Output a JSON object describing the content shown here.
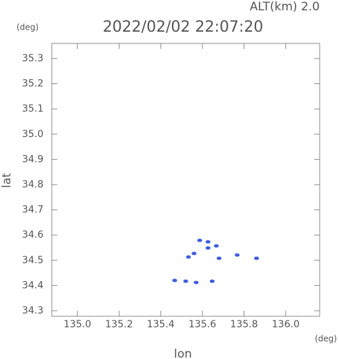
{
  "chart_data": {
    "type": "scatter",
    "title": "2022/02/02 22:07:20",
    "subtitle": "ALT(km) 2.0",
    "x_label": "lon",
    "y_label": "lat",
    "x_unit": "(deg)",
    "y_unit": "(deg)",
    "xlim": [
      134.877,
      136.163
    ],
    "ylim": [
      34.278,
      35.36
    ],
    "xticks": [
      {
        "value": 135,
        "label": "135.0"
      },
      135.2,
      135.4,
      135.6,
      135.8,
      {
        "value": 136,
        "label": "136.0"
      }
    ],
    "yticks": [
      34.3,
      34.4,
      34.5,
      34.6,
      34.7,
      34.8,
      34.9,
      {
        "value": 35,
        "label": "35.0"
      },
      35.1,
      35.2,
      35.3
    ],
    "series": [
      {
        "color": "#3b5bf0",
        "x": [
          135.587,
          135.627,
          135.667,
          135.627,
          135.56,
          135.533,
          135.68,
          135.767,
          135.86,
          135.467,
          135.52,
          135.57,
          135.647
        ],
        "values": [
          34.579,
          34.573,
          34.557,
          34.549,
          34.527,
          34.513,
          34.508,
          34.521,
          34.508,
          34.42,
          34.417,
          34.412,
          34.417
        ]
      }
    ]
  }
}
